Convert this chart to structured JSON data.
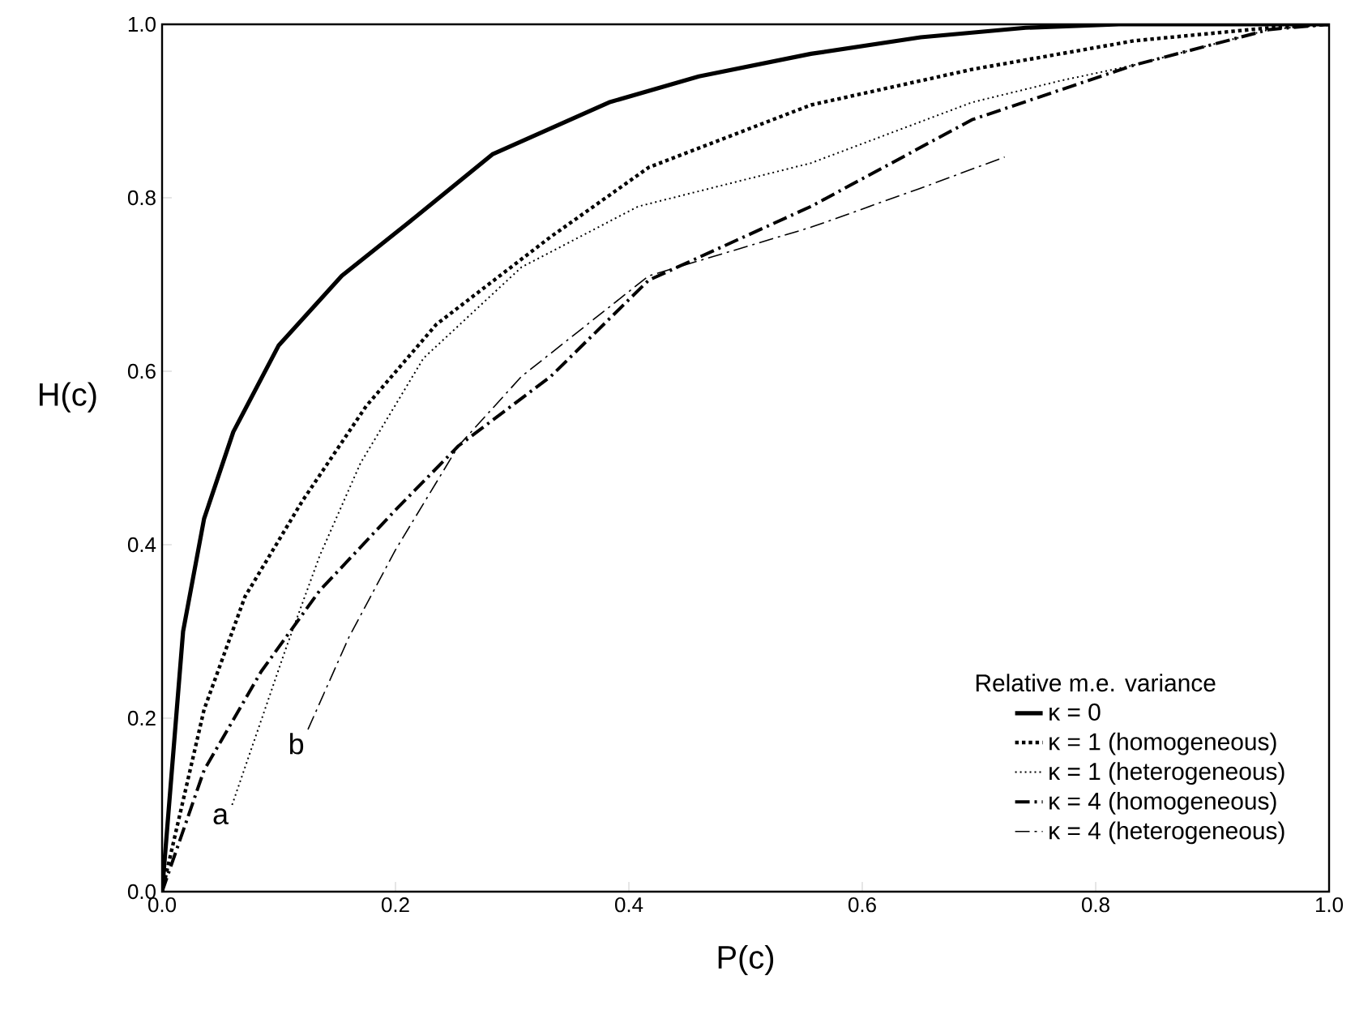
{
  "chart_data": {
    "type": "line",
    "xlabel": "P(c)",
    "ylabel": "H(c)",
    "legend_title": "Relative m.e. variance",
    "xlim": [
      0,
      1
    ],
    "ylim": [
      0,
      1
    ],
    "xticks": [
      {
        "value": 0,
        "label": "0.0"
      },
      {
        "value": 0.2,
        "label": "0.2"
      },
      {
        "value": 0.4,
        "label": "0.4"
      },
      {
        "value": 0.6,
        "label": "0.6"
      },
      {
        "value": 0.8,
        "label": "0.8"
      },
      {
        "value": 1,
        "label": "1.0"
      }
    ],
    "yticks": [
      {
        "value": 0,
        "label": "0.0"
      },
      {
        "value": 0.2,
        "label": "0.2"
      },
      {
        "value": 0.4,
        "label": "0.4"
      },
      {
        "value": 0.6,
        "label": "0.6"
      },
      {
        "value": 0.8,
        "label": "0.8"
      },
      {
        "value": 1,
        "label": "1.0"
      }
    ],
    "grid": false,
    "legend": "bottom right",
    "marker": "none",
    "series": [
      {
        "name": "κ = 0",
        "color": "#000000",
        "line_style": "solid",
        "x": [
          0,
          0.018,
          0.036,
          0.061,
          0.1,
          0.154,
          0.21,
          0.283,
          0.383,
          0.46,
          0.556,
          0.65,
          0.74,
          0.82,
          1
        ],
        "values": [
          0,
          0.3,
          0.43,
          0.53,
          0.63,
          0.71,
          0.77,
          0.85,
          0.91,
          0.94,
          0.966,
          0.985,
          0.996,
          1,
          1
        ]
      },
      {
        "name": "κ = 1 (homogeneous)",
        "color": "#000000",
        "line_style": "dotted",
        "x": [
          0,
          0.036,
          0.071,
          0.12,
          0.175,
          0.235,
          0.333,
          0.417,
          0.556,
          0.694,
          0.833,
          0.949,
          1
        ],
        "values": [
          0,
          0.21,
          0.34,
          0.45,
          0.56,
          0.654,
          0.755,
          0.835,
          0.907,
          0.948,
          0.981,
          0.996,
          1
        ]
      },
      {
        "name": "κ = 1 (heterogeneous)",
        "color": "#000000",
        "line_style": "dotted",
        "x": [
          0.06,
          0.106,
          0.135,
          0.17,
          0.224,
          0.308,
          0.408,
          0.556,
          0.694,
          0.77,
          0.833,
          0.949,
          1
        ],
        "values": [
          0.1,
          0.28,
          0.387,
          0.494,
          0.615,
          0.72,
          0.79,
          0.84,
          0.91,
          0.935,
          0.953,
          0.994,
          1
        ]
      },
      {
        "name": "κ = 4 (homogeneous)",
        "color": "#000000",
        "line_style": "dashed",
        "x": [
          0,
          0.036,
          0.085,
          0.135,
          0.2,
          0.254,
          0.333,
          0.417,
          0.556,
          0.694,
          0.833,
          0.949,
          1
        ],
        "values": [
          0,
          0.14,
          0.254,
          0.347,
          0.44,
          0.514,
          0.594,
          0.705,
          0.79,
          0.89,
          0.953,
          0.994,
          1
        ]
      },
      {
        "name": "κ = 4 (heterogeneous)",
        "color": "#000000",
        "line_style": "dashed",
        "x": [
          0.125,
          0.16,
          0.2,
          0.254,
          0.308,
          0.417,
          0.556,
          0.648,
          0.722
        ],
        "values": [
          0.187,
          0.293,
          0.394,
          0.514,
          0.594,
          0.71,
          0.766,
          0.81,
          0.847
        ]
      }
    ],
    "annotations": [
      {
        "text": "a",
        "x": 0.06,
        "y": 0.1
      },
      {
        "text": "b",
        "x": 0.125,
        "y": 0.187
      }
    ]
  }
}
